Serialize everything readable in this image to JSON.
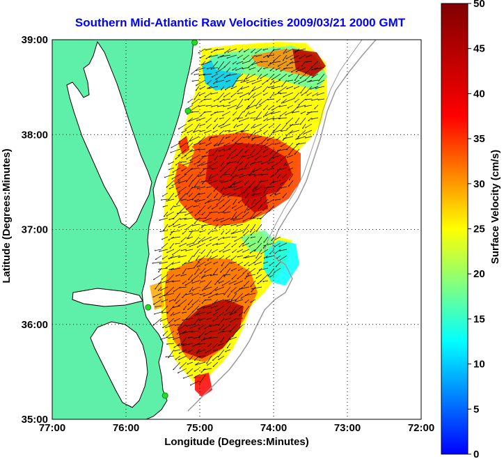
{
  "title": "Southern Mid-Atlantic Raw Velocities 2009/03/21 2000 GMT",
  "map": {
    "xlabel": "Longitude (Degrees:Minutes)",
    "ylabel": "Latitude (Degrees:Minutes)",
    "lon_ticks": [
      "77:00",
      "76:00",
      "75:00",
      "74:00",
      "73:00",
      "72:00"
    ],
    "lat_ticks": [
      "39:00",
      "38:00",
      "37:00",
      "36:00",
      "35:00"
    ],
    "lon_range": [
      -77,
      -72
    ],
    "lat_range": [
      35,
      39
    ],
    "grid": "dotted",
    "land_color": "#5ef0a8",
    "coast_color": "#000000",
    "isobath_color": "#9a9a9a",
    "station_color": "#22dd22"
  },
  "colorbar": {
    "label": "Surface Velocity (cm/s)",
    "ticks": [
      "0",
      "5",
      "10",
      "15",
      "20",
      "25",
      "30",
      "35",
      "40",
      "45",
      "50"
    ],
    "range": [
      0,
      50
    ],
    "colormap": [
      "#0000ff",
      "#0080ff",
      "#00ffff",
      "#80ff80",
      "#ffff00",
      "#ff8000",
      "#ff0000",
      "#800000"
    ]
  },
  "stations": [
    {
      "name": "",
      "lon": -75.07,
      "lat": 38.97
    },
    {
      "name": "",
      "lon": -75.16,
      "lat": 38.25
    },
    {
      "name": "",
      "lon": -75.7,
      "lat": 36.18
    },
    {
      "name": "",
      "lon": -75.47,
      "lat": 35.25
    }
  ]
}
